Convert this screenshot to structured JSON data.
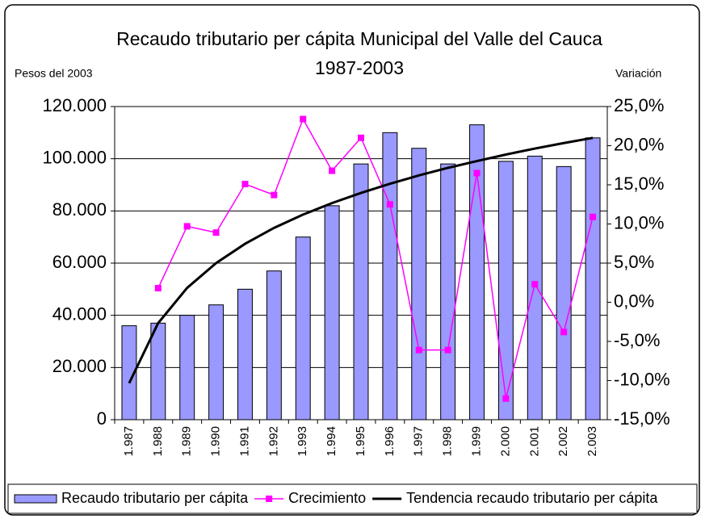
{
  "chart_data": {
    "type": "bar",
    "title": "Recaudo tributario per cápita Municipal del Valle del Cauca",
    "subtitle": "1987-2003",
    "y_label": "Pesos del 2003",
    "y2_label": "Variación",
    "categories": [
      "1.987",
      "1.988",
      "1.989",
      "1.990",
      "1.991",
      "1.992",
      "1.993",
      "1.994",
      "1.995",
      "1.996",
      "1.997",
      "1.998",
      "1.999",
      "2.000",
      "2.001",
      "2.002",
      "2.003"
    ],
    "series": [
      {
        "name": "Recaudo tributario per cápita",
        "type": "bar",
        "color": "#9999ff",
        "values": [
          36000,
          37000,
          40000,
          44000,
          50000,
          57000,
          70000,
          82000,
          98000,
          110000,
          104000,
          98000,
          113000,
          99000,
          101000,
          97000,
          108000
        ]
      },
      {
        "name": "Crecimiento",
        "type": "line",
        "markers": true,
        "color": "#ff00ff",
        "axis": "y2",
        "values": [
          null,
          1.8,
          9.7,
          8.9,
          15.1,
          13.7,
          23.4,
          16.8,
          21.0,
          12.5,
          -6.1,
          -6.1,
          16.5,
          -12.3,
          2.3,
          -3.8,
          10.9
        ]
      },
      {
        "name": "Tendencia recaudo tributario per cápita",
        "type": "line",
        "markers": false,
        "color": "#000000",
        "values": [
          14000,
          37000,
          50500,
          60000,
          67400,
          73500,
          78600,
          83000,
          86900,
          90400,
          93600,
          96500,
          99100,
          101600,
          103900,
          106000,
          108000
        ]
      }
    ],
    "ylim": [
      0,
      120000
    ],
    "yticks": [
      0,
      {
        "value": 20000,
        "label": "20.000"
      },
      {
        "value": 40000,
        "label": "40.000"
      },
      {
        "value": 60000,
        "label": "60.000"
      },
      {
        "value": 80000,
        "label": "80.000"
      },
      {
        "value": 100000,
        "label": "100.000"
      },
      {
        "value": 120000,
        "label": "120.000"
      }
    ],
    "y2lim": [
      -15,
      25
    ],
    "y2ticks": [
      {
        "value": -15,
        "label": "-15,0%"
      },
      {
        "value": -10,
        "label": "-10,0%"
      },
      {
        "value": -5,
        "label": "-5,0%"
      },
      {
        "value": 0,
        "label": "0,0%"
      },
      {
        "value": 5,
        "label": "5,0%"
      },
      {
        "value": 10,
        "label": "10,0%"
      },
      {
        "value": 15,
        "label": "15,0%"
      },
      {
        "value": 20,
        "label": "20,0%"
      },
      {
        "value": 25,
        "label": "25,0%"
      }
    ],
    "grid": true,
    "legend": "bottom"
  }
}
